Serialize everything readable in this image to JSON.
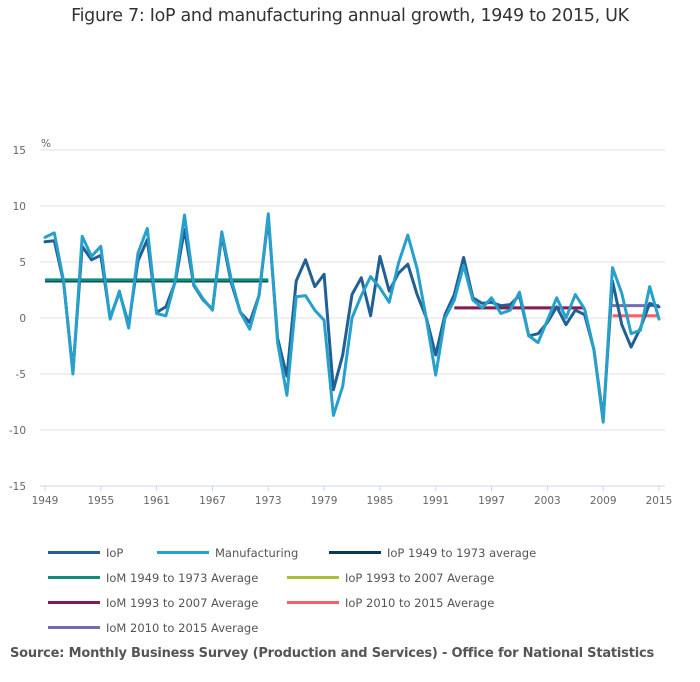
{
  "page": {
    "title": "Figure 7: IoP and manufacturing annual growth, 1949 to 2015, UK",
    "source": "Source: Monthly Business Survey (Production and Services) - Office for National Statistics"
  },
  "chart_data": {
    "type": "line",
    "title": "Figure 7: IoP and manufacturing annual growth, 1949 to 2015, UK",
    "xlabel": "",
    "ylabel": "%",
    "ylim": [
      -15,
      15
    ],
    "xlim": [
      1949,
      2015
    ],
    "y_ticks": [
      "15",
      "10",
      "5",
      "0",
      "-5",
      "-10",
      "-15"
    ],
    "y_tick_values": [
      15,
      10,
      5,
      0,
      -5,
      -10,
      -15
    ],
    "x_ticks": [
      "1949",
      "1955",
      "1961",
      "1967",
      "1973",
      "1979",
      "1985",
      "1991",
      "1997",
      "2003",
      "2009",
      "2015"
    ],
    "x_tick_values": [
      1949,
      1955,
      1961,
      1967,
      1973,
      1979,
      1985,
      1991,
      1997,
      2003,
      2009,
      2015
    ],
    "grid": true,
    "legend_position": "bottom",
    "x": [
      1949,
      1950,
      1951,
      1952,
      1953,
      1954,
      1955,
      1956,
      1957,
      1958,
      1959,
      1960,
      1961,
      1962,
      1963,
      1964,
      1965,
      1966,
      1967,
      1968,
      1969,
      1970,
      1971,
      1972,
      1973,
      1974,
      1975,
      1976,
      1977,
      1978,
      1979,
      1980,
      1981,
      1982,
      1983,
      1984,
      1985,
      1986,
      1987,
      1988,
      1989,
      1990,
      1991,
      1992,
      1993,
      1994,
      1995,
      1996,
      1997,
      1998,
      1999,
      2000,
      2001,
      2002,
      2003,
      2004,
      2005,
      2006,
      2007,
      2008,
      2009,
      2010,
      2011,
      2012,
      2013,
      2014,
      2015
    ],
    "series": [
      {
        "name": "IoP",
        "color": "#206095",
        "values": [
          6.8,
          6.9,
          3.2,
          -4.8,
          6.4,
          5.2,
          5.6,
          0.0,
          2.3,
          -0.6,
          5.1,
          7.0,
          0.5,
          1.0,
          3.2,
          7.9,
          2.9,
          1.6,
          0.8,
          7.4,
          3.2,
          0.5,
          -0.4,
          2.0,
          9.0,
          -1.8,
          -5.2,
          3.3,
          5.2,
          2.8,
          3.9,
          -6.4,
          -3.3,
          2.1,
          3.6,
          0.2,
          5.5,
          2.4,
          4.0,
          4.8,
          2.1,
          0.0,
          -3.3,
          0.3,
          2.1,
          5.4,
          1.8,
          1.3,
          1.4,
          1.1,
          1.2,
          2.0,
          -1.6,
          -1.4,
          -0.4,
          1.0,
          -0.6,
          0.7,
          0.3,
          -2.8,
          -9.0,
          3.3,
          -0.6,
          -2.6,
          -0.9,
          1.3,
          1.0
        ]
      },
      {
        "name": "Manufacturing",
        "color": "#27a0cc",
        "values": [
          7.2,
          7.6,
          3.3,
          -5.0,
          7.3,
          5.5,
          6.4,
          -0.1,
          2.4,
          -0.9,
          5.8,
          8.0,
          0.4,
          0.2,
          3.3,
          9.2,
          3.0,
          1.7,
          0.7,
          7.7,
          3.5,
          0.5,
          -1.0,
          2.0,
          9.3,
          -2.2,
          -6.9,
          1.9,
          2.0,
          0.7,
          -0.2,
          -8.7,
          -6.1,
          0.0,
          2.0,
          3.7,
          2.7,
          1.4,
          4.9,
          7.4,
          4.4,
          -0.1,
          -5.1,
          0.0,
          1.6,
          4.7,
          1.6,
          0.9,
          1.8,
          0.4,
          0.7,
          2.3,
          -1.6,
          -2.2,
          -0.2,
          1.8,
          0.0,
          2.1,
          0.8,
          -2.8,
          -9.3,
          4.5,
          2.2,
          -1.4,
          -1.1,
          2.8,
          -0.1
        ]
      }
    ],
    "averages": [
      {
        "name": "IoP 1949 to 1973 average",
        "color": "#003c57",
        "from": 1949,
        "to": 1973,
        "value": 3.3
      },
      {
        "name": "IoM 1949 to 1973 Average",
        "color": "#118c7b",
        "from": 1949,
        "to": 1973,
        "value": 3.4
      },
      {
        "name": "IoP 1993 to 2007 Average",
        "color": "#a8bd3a",
        "from": 1993,
        "to": 2007,
        "value": 0.9
      },
      {
        "name": "IoM 1993 to 2007 Average",
        "color": "#871a5b",
        "from": 1993,
        "to": 2007,
        "value": 0.9
      },
      {
        "name": "IoP 2010 to 2015 Average",
        "color": "#f66068",
        "from": 2010,
        "to": 2015,
        "value": 0.2
      },
      {
        "name": "IoM 2010 to 2015 Average",
        "color": "#746cb1",
        "from": 2010,
        "to": 2015,
        "value": 1.1
      }
    ]
  },
  "legend": {
    "rows": [
      [
        {
          "label": "IoP",
          "color": "#206095"
        },
        {
          "label": "Manufacturing",
          "color": "#27a0cc"
        },
        {
          "label": "IoP 1949 to 1973 average",
          "color": "#003c57"
        }
      ],
      [
        {
          "label": "IoM 1949 to 1973 Average",
          "color": "#118c7b"
        },
        {
          "label": "IoP 1993 to 2007 Average",
          "color": "#a8bd3a"
        }
      ],
      [
        {
          "label": "IoM 1993 to 2007 Average",
          "color": "#871a5b"
        },
        {
          "label": "IoP 2010 to 2015 Average",
          "color": "#f66068"
        }
      ],
      [
        {
          "label": "IoM 2010 to 2015 Average",
          "color": "#746cb1"
        }
      ]
    ]
  }
}
